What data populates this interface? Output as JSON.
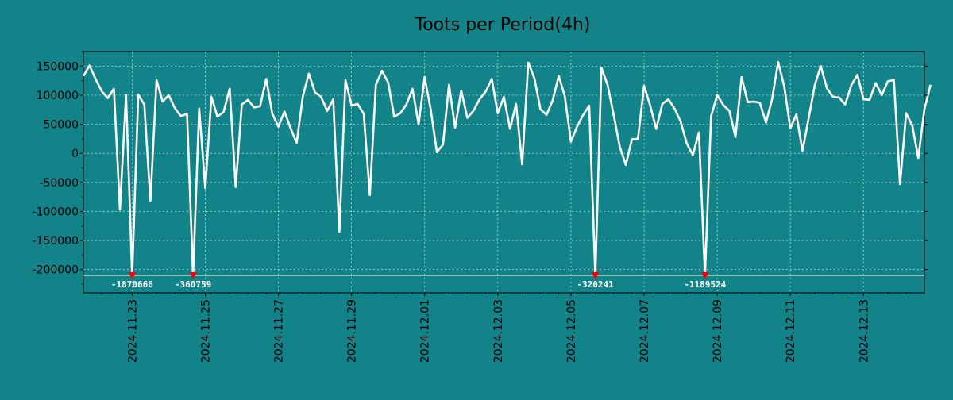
{
  "chart_data": {
    "type": "line",
    "title": "Toots per Period(4h)",
    "xlabel": "",
    "ylabel": "",
    "grid": true,
    "ylim": [
      -240000,
      175000
    ],
    "yticks": [
      150000,
      100000,
      50000,
      0,
      -50000,
      -100000,
      -150000,
      -200000
    ],
    "ytick_labels": [
      "150000",
      "100000",
      "50000",
      "0",
      "-50000",
      "-100000",
      "-150000",
      "-200000"
    ],
    "x_range": [
      0,
      138
    ],
    "xticks": [
      {
        "x": 8,
        "label": "2024.11.23"
      },
      {
        "x": 20,
        "label": "2024.11.25"
      },
      {
        "x": 32,
        "label": "2024.11.27"
      },
      {
        "x": 44,
        "label": "2024.11.29"
      },
      {
        "x": 56,
        "label": "2024.12.01"
      },
      {
        "x": 68,
        "label": "2024.12.03"
      },
      {
        "x": 80,
        "label": "2024.12.05"
      },
      {
        "x": 92,
        "label": "2024.12.07"
      },
      {
        "x": 104,
        "label": "2024.12.09"
      },
      {
        "x": 116,
        "label": "2024.12.11"
      },
      {
        "x": 128,
        "label": "2024.12.13"
      }
    ],
    "clip_floor": -210000,
    "clipped_points": [
      {
        "x": 8,
        "label": "-1870666"
      },
      {
        "x": 18,
        "label": "-360759"
      },
      {
        "x": 84,
        "label": "-320241"
      },
      {
        "x": 102,
        "label": "-1189524"
      }
    ],
    "series": [
      {
        "name": "Toots",
        "color": "#ffffff",
        "values": [
          133000,
          151000,
          128000,
          107000,
          95000,
          111000,
          -97000,
          100000,
          -210000,
          101000,
          84000,
          -82000,
          126000,
          89000,
          100000,
          78000,
          64000,
          68000,
          -210000,
          77000,
          -60000,
          97000,
          63000,
          71000,
          111000,
          -58000,
          84000,
          92000,
          79000,
          81000,
          128000,
          68000,
          46000,
          72000,
          43000,
          18000,
          98000,
          137000,
          105000,
          97000,
          73000,
          93000,
          -135000,
          126000,
          82000,
          85000,
          68000,
          -72000,
          118000,
          142000,
          122000,
          63000,
          69000,
          84000,
          111000,
          50000,
          131000,
          75000,
          2000,
          15000,
          118000,
          44000,
          108000,
          61000,
          73000,
          93000,
          106000,
          128000,
          69000,
          97000,
          42000,
          85000,
          -19000,
          156000,
          129000,
          76000,
          66000,
          91000,
          133000,
          98000,
          20000,
          46000,
          66000,
          82000,
          -210000,
          147000,
          118000,
          67000,
          12000,
          -20000,
          24000,
          25000,
          116000,
          82000,
          42000,
          85000,
          93000,
          77000,
          55000,
          17000,
          -3000,
          36000,
          -210000,
          64000,
          100000,
          83000,
          73000,
          28000,
          131000,
          88000,
          89000,
          87000,
          53000,
          93000,
          157000,
          115000,
          43000,
          67000,
          4000,
          60000,
          117000,
          150000,
          112000,
          97000,
          96000,
          84000,
          117000,
          135000,
          93000,
          92000,
          121000,
          100000,
          124000,
          126000,
          -53000,
          69000,
          48000,
          -8000,
          76000,
          118000
        ]
      }
    ]
  }
}
